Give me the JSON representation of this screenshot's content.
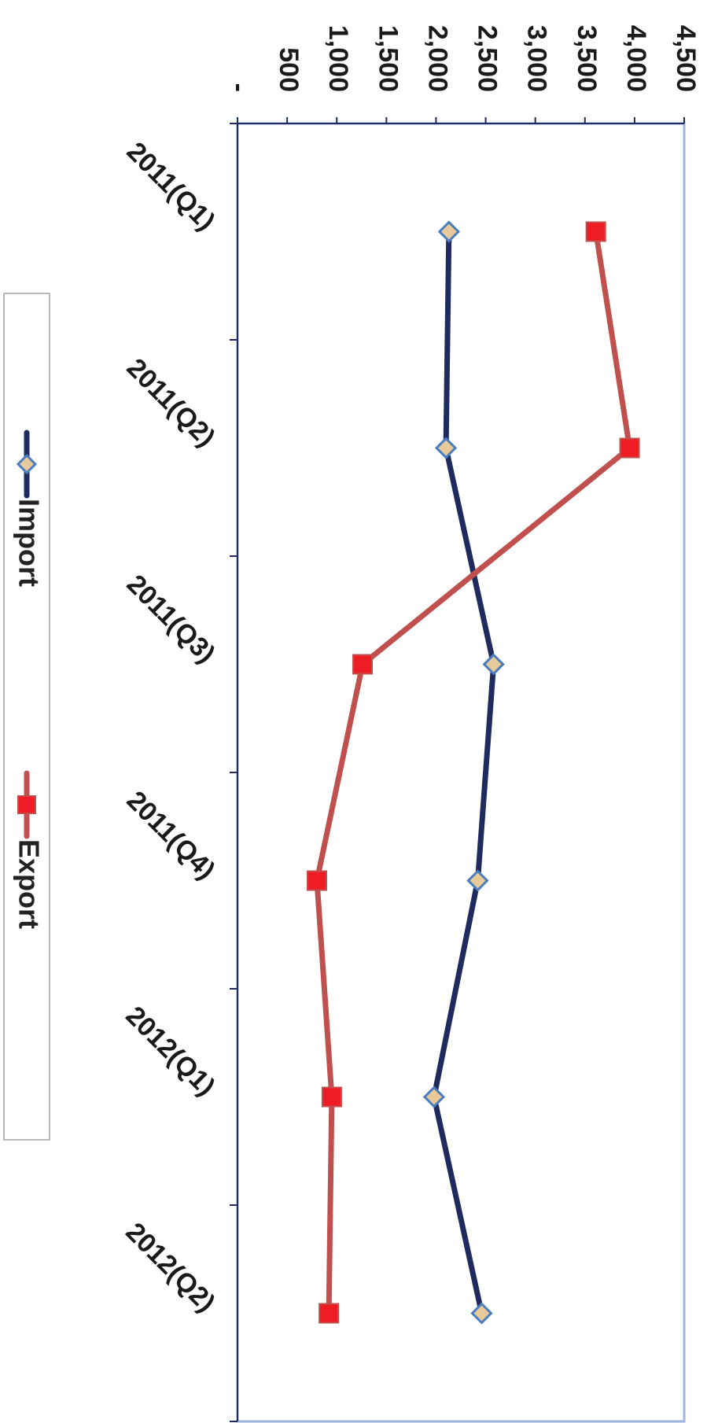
{
  "chart_data": {
    "type": "line",
    "title": "",
    "xlabel": "",
    "ylabel": "",
    "categories": [
      "2011(Q1)",
      "2011(Q2)",
      "2011(Q3)",
      "2011(Q4)",
      "2012(Q1)",
      "2012(Q2)"
    ],
    "y_tick_labels": [
      "-",
      "500",
      "1,000",
      "1,500",
      "2,000",
      "2,500",
      "3,000",
      "3,500",
      "4,000",
      "4,500"
    ],
    "ylim": [
      0,
      4500
    ],
    "grid": false,
    "legend_position": "bottom",
    "orientation": "rotated 90 degrees clockwise",
    "series": [
      {
        "name": "Import",
        "values": [
          2130,
          2100,
          2580,
          2420,
          1980,
          2460
        ],
        "line_color": "#1f2a5e",
        "marker": "diamond",
        "marker_fill": "#e8c99a",
        "marker_stroke": "#4a7cc0"
      },
      {
        "name": "Export",
        "values": [
          3610,
          3950,
          1260,
          800,
          950,
          920
        ],
        "line_color": "#c0504d",
        "marker": "square",
        "marker_fill": "#ee1c24",
        "marker_stroke": "#c0504d"
      }
    ],
    "plot_border_color": "#9db3e0",
    "axis_color": "#1f2a5e"
  }
}
